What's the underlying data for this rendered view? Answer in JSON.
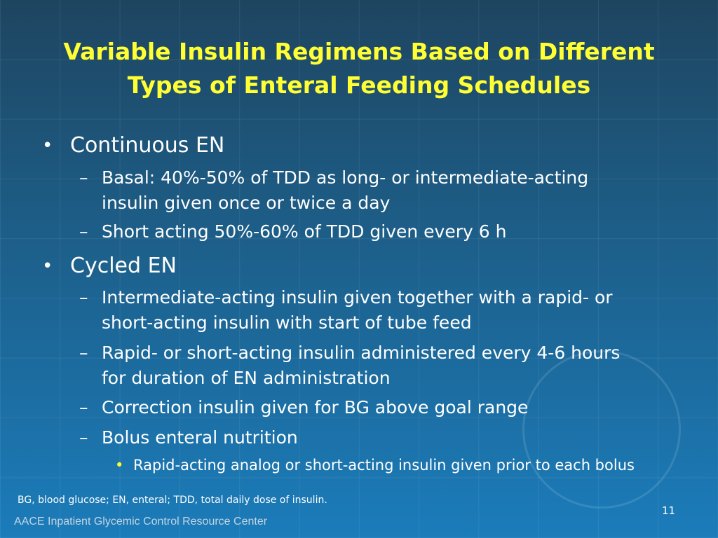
{
  "title": [
    "Variable Insulin Regimens Based on Different",
    "Types of Enteral Feeding Schedules"
  ],
  "bullets": [
    {
      "text": "Continuous EN",
      "items": [
        {
          "text": "Basal: 40%-50% of TDD as long- or intermediate-acting insulin given once or twice a day"
        },
        {
          "text": "Short acting 50%-60% of TDD given every 6 h"
        }
      ]
    },
    {
      "text": "Cycled EN",
      "items": [
        {
          "text": "Intermediate-acting insulin given together with a rapid- or short-acting insulin with start of tube feed"
        },
        {
          "text": "Rapid- or short-acting insulin administered every 4-6 hours for duration of EN administration"
        },
        {
          "text": "Correction insulin given for BG above goal range"
        },
        {
          "text": "Bolus enteral nutrition",
          "items": [
            {
              "text": "Rapid-acting analog or short-acting insulin given prior to each bolus"
            }
          ]
        }
      ]
    }
  ],
  "footnote": "BG, blood glucose; EN, enteral; TDD, total daily dose of insulin.",
  "footer": "AACE Inpatient Glycemic Control Resource Center",
  "page_number": "11"
}
